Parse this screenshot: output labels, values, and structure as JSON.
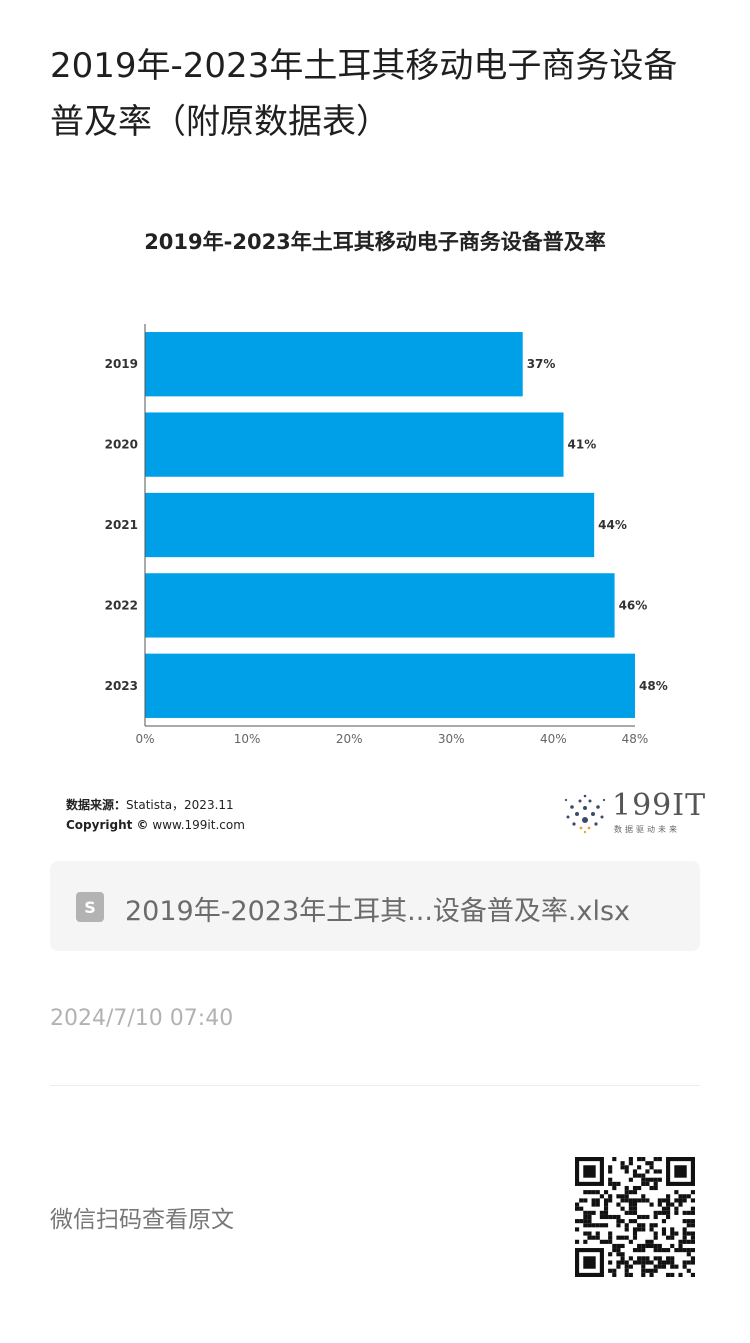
{
  "article": {
    "title": "2019年-2023年土耳其移动电子商务设备普及率（附原数据表）"
  },
  "chart_data": {
    "type": "bar",
    "orientation": "horizontal",
    "title": "2019年-2023年土耳其移动电子商务设备普及率",
    "categories": [
      "2019",
      "2020",
      "2021",
      "2022",
      "2023"
    ],
    "values": [
      37,
      41,
      44,
      46,
      48
    ],
    "value_labels": [
      "37%",
      "41%",
      "44%",
      "46%",
      "48%"
    ],
    "xlim": [
      0,
      48
    ],
    "x_ticks": [
      "0%",
      "10%",
      "20%",
      "30%",
      "40%",
      "48%"
    ],
    "x_tick_values": [
      0,
      10,
      20,
      30,
      40,
      48
    ],
    "bar_color": "#00a0e9",
    "grid": false,
    "source_label": "数据来源：",
    "source_value": "Statista，2023.11",
    "copyright_label": "Copyright ©",
    "copyright_value": "www.199it.com",
    "brand": "199IT",
    "brand_sub": "数据驱动未来"
  },
  "attachment": {
    "icon": "spreadsheet-file-icon",
    "filename": "2019年-2023年土耳其...设备普及率.xlsx"
  },
  "post": {
    "date": "2024/7/10 07:40"
  },
  "footer": {
    "wechat_hint": "微信扫码查看原文",
    "qr_icon": "qr-code-icon"
  }
}
